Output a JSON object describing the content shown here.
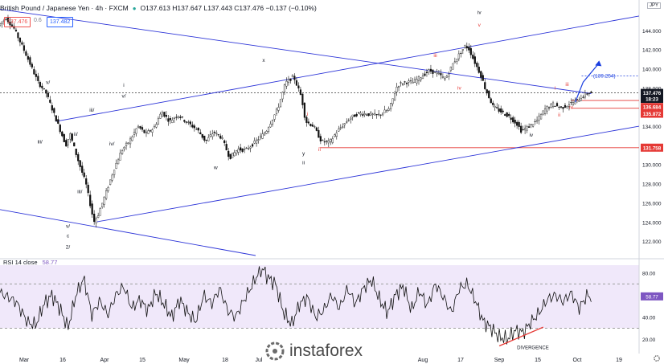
{
  "header": {
    "symbol": "British Pound / Japanese Yen · 4h · FXCM",
    "ohlc": "O137.613 H137.647 L137.443 C137.476 −0.137 (−0.10%)",
    "bid": "137.476",
    "spread": "0.6",
    "ask": "137.482",
    "currency": "JPY"
  },
  "rsi": {
    "label": "RSI 14 close",
    "value": "58.77",
    "upper": 70,
    "lower": 30
  },
  "price_tags": [
    {
      "text": "137.476",
      "color": "#131722",
      "price": 137.476
    },
    {
      "text": "18:23",
      "color": "#131722",
      "price": 136.85
    },
    {
      "text": "136.684",
      "color": "#e53935",
      "price": 136.0
    },
    {
      "text": "135.872",
      "color": "#e53935",
      "price": 135.3
    },
    {
      "text": "131.758",
      "color": "#e53935",
      "price": 131.758
    }
  ],
  "projection_label": "(139.254)",
  "divergence_label": "DIVERGENCE",
  "watermark": "instaforex",
  "chart_data": {
    "type": "candlestick",
    "price_axis": {
      "min": 120.5,
      "max": 146.5,
      "ticks": [
        122,
        124,
        126,
        128,
        130,
        132,
        134,
        136,
        138,
        140,
        142,
        144
      ]
    },
    "rsi_axis": {
      "min": 10,
      "max": 87,
      "ticks": [
        20,
        40,
        60,
        80
      ]
    },
    "x_labels": [
      "Mar",
      "16",
      "Apr",
      "15",
      "May",
      "18",
      "Jul",
      "Aug",
      "17",
      "Sep",
      "15",
      "Oct",
      "19"
    ],
    "price_path": [
      [
        0,
        144.5
      ],
      [
        2,
        145.3
      ],
      [
        4,
        144.2
      ],
      [
        7,
        141.5
      ],
      [
        10,
        138.6
      ],
      [
        12,
        137.5
      ],
      [
        15,
        134.2
      ],
      [
        17,
        132.0
      ],
      [
        18,
        133.2
      ],
      [
        20,
        130.5
      ],
      [
        22,
        128.0
      ],
      [
        24,
        124.0
      ],
      [
        25,
        124.7
      ],
      [
        27,
        127.0
      ],
      [
        29,
        129.5
      ],
      [
        31,
        131.5
      ],
      [
        33,
        132.5
      ],
      [
        35,
        134.0
      ],
      [
        37,
        133.2
      ],
      [
        39,
        133.8
      ],
      [
        41,
        135.5
      ],
      [
        43,
        134.5
      ],
      [
        45,
        135.2
      ],
      [
        47,
        134.5
      ],
      [
        50,
        133.6
      ],
      [
        52,
        132.4
      ],
      [
        54,
        133.4
      ],
      [
        56,
        132.8
      ],
      [
        58,
        130.7
      ],
      [
        60,
        131.6
      ],
      [
        62,
        131.5
      ],
      [
        64,
        132.2
      ],
      [
        67,
        133.4
      ],
      [
        70,
        135.8
      ],
      [
        72,
        138.5
      ],
      [
        74,
        139.2
      ],
      [
        76,
        137.0
      ],
      [
        77,
        134.5
      ],
      [
        79,
        134.0
      ],
      [
        81,
        132.4
      ],
      [
        83,
        132.3
      ],
      [
        85,
        133.5
      ],
      [
        88,
        134.8
      ],
      [
        90,
        135.3
      ],
      [
        92,
        135.3
      ],
      [
        95,
        135.1
      ],
      [
        98,
        135.8
      ],
      [
        100,
        138.3
      ],
      [
        102,
        138.6
      ],
      [
        104,
        138.6
      ],
      [
        106,
        139.2
      ],
      [
        108,
        139.8
      ],
      [
        110,
        139.5
      ],
      [
        112,
        138.9
      ],
      [
        114,
        140.6
      ],
      [
        116,
        141.8
      ],
      [
        117,
        142.4
      ],
      [
        118,
        142.0
      ],
      [
        119,
        141.0
      ],
      [
        121,
        139.2
      ],
      [
        122,
        137.9
      ],
      [
        124,
        136.0
      ],
      [
        126,
        135.5
      ],
      [
        128,
        135.0
      ],
      [
        130,
        134.2
      ],
      [
        131,
        133.5
      ],
      [
        133,
        134.0
      ],
      [
        135,
        134.6
      ],
      [
        137,
        135.8
      ],
      [
        139,
        136.3
      ],
      [
        141,
        135.9
      ],
      [
        143,
        136.3
      ],
      [
        145,
        136.7
      ],
      [
        147,
        137.3
      ],
      [
        148,
        137.5
      ]
    ],
    "rsi_path": [
      [
        0,
        62
      ],
      [
        4,
        54
      ],
      [
        7,
        35
      ],
      [
        9,
        33
      ],
      [
        11,
        52
      ],
      [
        13,
        60
      ],
      [
        15,
        48
      ],
      [
        17,
        30
      ],
      [
        19,
        60
      ],
      [
        21,
        75
      ],
      [
        23,
        42
      ],
      [
        25,
        55
      ],
      [
        27,
        42
      ],
      [
        29,
        60
      ],
      [
        31,
        68
      ],
      [
        33,
        48
      ],
      [
        35,
        56
      ],
      [
        37,
        46
      ],
      [
        39,
        62
      ],
      [
        41,
        52
      ],
      [
        43,
        40
      ],
      [
        45,
        56
      ],
      [
        47,
        44
      ],
      [
        49,
        36
      ],
      [
        51,
        60
      ],
      [
        53,
        52
      ],
      [
        55,
        66
      ],
      [
        57,
        46
      ],
      [
        59,
        40
      ],
      [
        61,
        55
      ],
      [
        63,
        68
      ],
      [
        65,
        82
      ],
      [
        66,
        83
      ],
      [
        67,
        76
      ],
      [
        69,
        70
      ],
      [
        71,
        44
      ],
      [
        73,
        33
      ],
      [
        75,
        52
      ],
      [
        77,
        58
      ],
      [
        79,
        40
      ],
      [
        81,
        46
      ],
      [
        83,
        60
      ],
      [
        85,
        48
      ],
      [
        87,
        66
      ],
      [
        89,
        52
      ],
      [
        91,
        66
      ],
      [
        93,
        74
      ],
      [
        95,
        56
      ],
      [
        97,
        44
      ],
      [
        99,
        60
      ],
      [
        101,
        68
      ],
      [
        103,
        46
      ],
      [
        105,
        64
      ],
      [
        107,
        50
      ],
      [
        109,
        70
      ],
      [
        111,
        58
      ],
      [
        113,
        44
      ],
      [
        115,
        66
      ],
      [
        117,
        70
      ],
      [
        119,
        55
      ],
      [
        121,
        36
      ],
      [
        123,
        30
      ],
      [
        125,
        22
      ],
      [
        127,
        20
      ],
      [
        129,
        28
      ],
      [
        131,
        26
      ],
      [
        133,
        36
      ],
      [
        135,
        44
      ],
      [
        137,
        56
      ],
      [
        139,
        60
      ],
      [
        141,
        54
      ],
      [
        143,
        62
      ],
      [
        145,
        48
      ],
      [
        147,
        60
      ],
      [
        148,
        58
      ]
    ],
    "trend_lines": [
      {
        "x1": 0,
        "y1": 146.2,
        "x2": 148,
        "y2": 137.4
      },
      {
        "x1": 24,
        "y1": 124.0,
        "x2": 160,
        "y2": 134.0
      },
      {
        "x1": 0,
        "y1": 125.3,
        "x2": 64,
        "y2": 120.5
      },
      {
        "x1": 14,
        "y1": 134.5,
        "x2": 160,
        "y2": 145.5
      }
    ],
    "levels": [
      {
        "price": 131.758,
        "x_start": 80,
        "color": "#e53935"
      },
      {
        "price": 137.476,
        "x_start": 0,
        "color": "#555555",
        "dashed": true
      },
      {
        "price": 136.684,
        "x_start": 143,
        "color": "#e53935"
      },
      {
        "price": 135.872,
        "x_start": 143,
        "color": "#e53935"
      }
    ],
    "wave_labels": [
      {
        "text": "v/",
        "x": 12,
        "price": 138.4,
        "color": "#131722"
      },
      {
        "text": "iii/",
        "x": 23,
        "price": 135.5,
        "color": "#131722"
      },
      {
        "text": "iii/",
        "x": 10,
        "price": 132.2,
        "color": "#131722"
      },
      {
        "text": "ii/",
        "x": 19,
        "price": 133.0,
        "color": "#131722"
      },
      {
        "text": "iii/",
        "x": 20,
        "price": 127.0,
        "color": "#131722"
      },
      {
        "text": "iv/",
        "x": 28,
        "price": 132.0,
        "color": "#131722"
      },
      {
        "text": "i",
        "x": 31,
        "price": 138.1,
        "color": "#131722"
      },
      {
        "text": "v/",
        "x": 31,
        "price": 137.0,
        "color": "#131722"
      },
      {
        "text": "v/",
        "x": 17,
        "price": 123.4,
        "color": "#131722"
      },
      {
        "text": "c",
        "x": 17,
        "price": 122.4,
        "color": "#131722"
      },
      {
        "text": "2/",
        "x": 17,
        "price": 121.2,
        "color": "#131722"
      },
      {
        "text": "x",
        "x": 66,
        "price": 140.7,
        "color": "#131722"
      },
      {
        "text": "w",
        "x": 54,
        "price": 129.5,
        "color": "#131722"
      },
      {
        "text": "y",
        "x": 76,
        "price": 131.0,
        "color": "#131722"
      },
      {
        "text": "ii",
        "x": 76,
        "price": 130.0,
        "color": "#131722"
      },
      {
        "text": "i",
        "x": 77,
        "price": 135.1,
        "color": "#e53935"
      },
      {
        "text": "ii",
        "x": 80,
        "price": 131.4,
        "color": "#e53935"
      },
      {
        "text": "iii",
        "x": 109,
        "price": 141.2,
        "color": "#e53935"
      },
      {
        "text": "iv",
        "x": 115,
        "price": 137.8,
        "color": "#e53935"
      },
      {
        "text": "iv",
        "x": 120,
        "price": 145.7,
        "color": "#131722"
      },
      {
        "text": "v",
        "x": 120,
        "price": 144.4,
        "color": "#e53935"
      },
      {
        "text": "iv",
        "x": 133,
        "price": 132.9,
        "color": "#131722"
      },
      {
        "text": "i",
        "x": 139,
        "price": 137.8,
        "color": "#e53935"
      },
      {
        "text": "ii",
        "x": 140,
        "price": 135.0,
        "color": "#e53935"
      },
      {
        "text": "iii",
        "x": 142,
        "price": 138.2,
        "color": "#e53935"
      },
      {
        "text": "iv",
        "x": 143,
        "price": 135.8,
        "color": "#e53935"
      }
    ],
    "projection": {
      "from": [
        144,
        136.5
      ],
      "mid": [
        146,
        138.6
      ],
      "to": [
        150,
        140.6
      ],
      "label_price": 139.254,
      "color": "#1a3ee0"
    },
    "divergence": {
      "x1": 125,
      "r1": 14,
      "x2": 136,
      "r2": 31,
      "color": "#e53935"
    }
  }
}
